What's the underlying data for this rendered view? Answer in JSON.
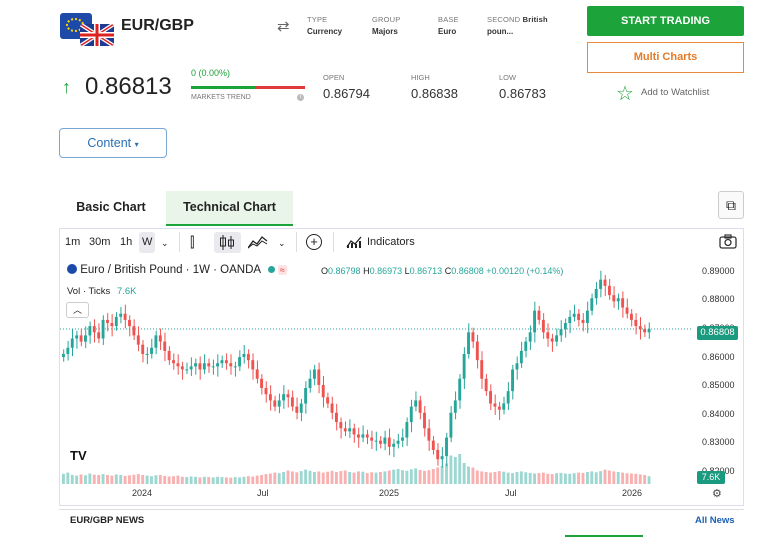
{
  "header": {
    "pair": "EUR/GBP",
    "meta": [
      {
        "label": "TYPE",
        "value": "Currency"
      },
      {
        "label": "GROUP",
        "value": "Majors"
      },
      {
        "label": "BASE",
        "value": "Euro"
      },
      {
        "label": "SECOND",
        "value_bold": "British",
        "value": "poun..."
      }
    ],
    "start_trading": "START TRADING",
    "multi_charts": "Multi Charts"
  },
  "quote": {
    "price": "0.86813",
    "change": "0 (0.00%)",
    "trend_label": "MARKETS TREND",
    "trend_green_fraction": 0.57,
    "stats": [
      {
        "label": "OPEN",
        "value": "0.86794"
      },
      {
        "label": "HIGH",
        "value": "0.86838"
      },
      {
        "label": "LOW",
        "value": "0.86783"
      }
    ],
    "watchlist": "Add to Watchlist",
    "colors": {
      "up": "#1ca33a",
      "down": "#e03a3a"
    }
  },
  "content_button": "Content",
  "tabs": {
    "basic": "Basic Chart",
    "technical": "Technical Chart"
  },
  "toolbar": {
    "intervals": [
      "1m",
      "30m",
      "1h",
      "W"
    ],
    "indicators": "Indicators"
  },
  "chart_legend": {
    "symbol": "Euro / British Pound · 1W · OANDA",
    "o_label": "O",
    "o": "0.86798",
    "h_label": "H",
    "h": "0.86973",
    "l_label": "L",
    "l": "0.86713",
    "c_label": "C",
    "c": "0.86808",
    "change": "+0.00120 (+0.14%)",
    "vol_label": "Vol · Ticks",
    "vol_value": "7.6K"
  },
  "chart_data": {
    "type": "candlestick",
    "y_ticks": [
      "0.89000",
      "0.88000",
      "0.87000",
      "0.86000",
      "0.85000",
      "0.84000",
      "0.83000",
      "0.82000"
    ],
    "ylim": [
      0.818,
      0.891
    ],
    "x_ticks": [
      "2024",
      "Jul",
      "2025",
      "Jul",
      "2026"
    ],
    "last_price": "0.86808",
    "last_volume": "7.6K",
    "closes": [
      0.86,
      0.862,
      0.865,
      0.866,
      0.864,
      0.866,
      0.869,
      0.867,
      0.865,
      0.871,
      0.87,
      0.869,
      0.872,
      0.873,
      0.871,
      0.869,
      0.866,
      0.863,
      0.86,
      0.86,
      0.862,
      0.866,
      0.864,
      0.861,
      0.858,
      0.857,
      0.856,
      0.855,
      0.855,
      0.856,
      0.857,
      0.855,
      0.857,
      0.856,
      0.856,
      0.857,
      0.858,
      0.857,
      0.856,
      0.856,
      0.859,
      0.86,
      0.858,
      0.855,
      0.852,
      0.849,
      0.847,
      0.845,
      0.843,
      0.845,
      0.847,
      0.846,
      0.843,
      0.841,
      0.844,
      0.849,
      0.852,
      0.855,
      0.85,
      0.846,
      0.844,
      0.841,
      0.838,
      0.836,
      0.835,
      0.836,
      0.834,
      0.833,
      0.834,
      0.833,
      0.832,
      0.832,
      0.831,
      0.833,
      0.83,
      0.831,
      0.832,
      0.833,
      0.838,
      0.843,
      0.845,
      0.841,
      0.836,
      0.832,
      0.829,
      0.826,
      0.827,
      0.833,
      0.841,
      0.845,
      0.852,
      0.86,
      0.867,
      0.864,
      0.858,
      0.852,
      0.848,
      0.844,
      0.843,
      0.842,
      0.844,
      0.848,
      0.855,
      0.857,
      0.861,
      0.864,
      0.867,
      0.874,
      0.871,
      0.867,
      0.865,
      0.864,
      0.866,
      0.868,
      0.87,
      0.872,
      0.873,
      0.871,
      0.87,
      0.874,
      0.878,
      0.881,
      0.884,
      0.882,
      0.879,
      0.877,
      0.878,
      0.875,
      0.873,
      0.871,
      0.869,
      0.868,
      0.867,
      0.868
    ],
    "volumes": [
      0.34,
      0.38,
      0.3,
      0.28,
      0.32,
      0.29,
      0.35,
      0.31,
      0.3,
      0.33,
      0.3,
      0.28,
      0.32,
      0.3,
      0.27,
      0.29,
      0.31,
      0.33,
      0.3,
      0.28,
      0.26,
      0.29,
      0.3,
      0.27,
      0.25,
      0.26,
      0.28,
      0.24,
      0.23,
      0.25,
      0.24,
      0.22,
      0.24,
      0.23,
      0.22,
      0.24,
      0.23,
      0.22,
      0.21,
      0.23,
      0.22,
      0.24,
      0.26,
      0.25,
      0.28,
      0.3,
      0.33,
      0.35,
      0.38,
      0.36,
      0.4,
      0.45,
      0.42,
      0.39,
      0.43,
      0.48,
      0.44,
      0.4,
      0.42,
      0.38,
      0.41,
      0.44,
      0.4,
      0.43,
      0.45,
      0.4,
      0.38,
      0.42,
      0.41,
      0.36,
      0.39,
      0.38,
      0.4,
      0.42,
      0.45,
      0.48,
      0.5,
      0.46,
      0.44,
      0.49,
      0.52,
      0.47,
      0.44,
      0.46,
      0.5,
      0.55,
      0.6,
      0.68,
      0.95,
      0.9,
      1.0,
      0.7,
      0.58,
      0.55,
      0.45,
      0.42,
      0.4,
      0.38,
      0.4,
      0.43,
      0.41,
      0.38,
      0.36,
      0.4,
      0.42,
      0.39,
      0.37,
      0.35,
      0.36,
      0.38,
      0.34,
      0.33,
      0.36,
      0.37,
      0.35,
      0.34,
      0.36,
      0.38,
      0.37,
      0.4,
      0.42,
      0.39,
      0.43,
      0.48,
      0.45,
      0.42,
      0.4,
      0.38,
      0.36,
      0.35,
      0.34,
      0.32,
      0.3,
      0.26
    ]
  },
  "news": {
    "title": "EUR/GBP NEWS",
    "all": "All News"
  }
}
